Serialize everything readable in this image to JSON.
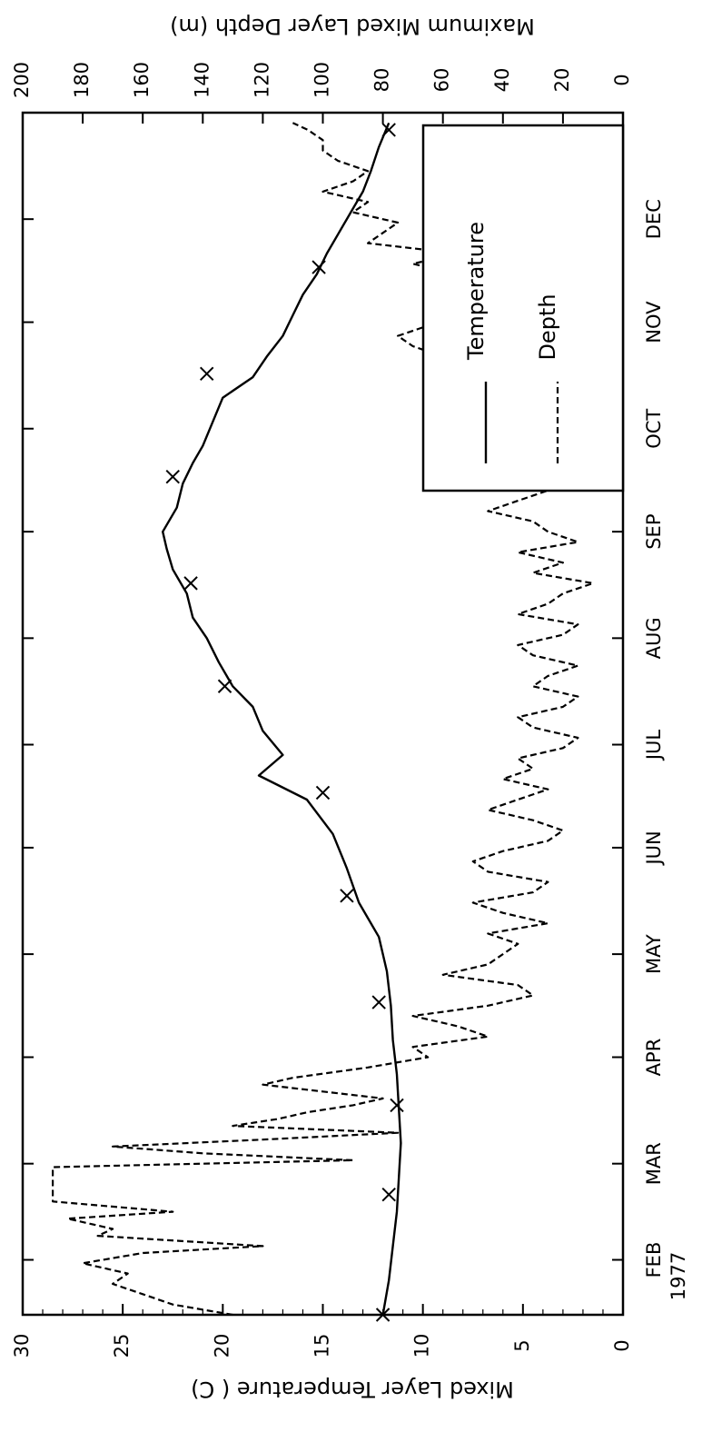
{
  "chart_data": {
    "type": "line",
    "orientation": "rotated-90-clockwise",
    "ylabel": "Mixed Layer Temperature ( C)",
    "y2label": "Maximum Mixed Layer Depth (m)",
    "ylim": [
      0,
      30
    ],
    "y2lim": [
      0,
      200
    ],
    "y2_inverted": true,
    "x_tick_labels": [
      "FEB",
      "MAR",
      "APR",
      "MAY",
      "JUN",
      "JUL",
      "AUG",
      "SEP",
      "OCT",
      "NOV",
      "DEC"
    ],
    "x_tick_day": [
      31,
      59,
      90,
      120,
      151,
      181,
      212,
      243,
      273,
      304,
      334
    ],
    "x_sub_label": "1977",
    "xlim": [
      15,
      365
    ],
    "y_ticks": [
      0,
      5,
      10,
      15,
      20,
      25,
      30
    ],
    "y2_ticks": [
      0,
      20,
      40,
      60,
      80,
      100,
      120,
      140,
      160,
      180,
      200
    ],
    "legend": {
      "placement": "lower-right (bottom-left when rotated)",
      "entries": [
        "Temperature",
        "Depth"
      ]
    },
    "series": [
      {
        "name": "Temperature",
        "style": "solid",
        "axis": "left",
        "x": [
          15,
          25,
          35,
          45,
          55,
          65,
          75,
          85,
          95,
          105,
          115,
          125,
          135,
          145,
          155,
          165,
          172,
          178,
          185,
          192,
          198,
          205,
          212,
          218,
          225,
          232,
          238,
          243,
          250,
          257,
          263,
          268,
          275,
          282,
          288,
          294,
          300,
          306,
          312,
          318,
          324,
          330,
          336,
          342,
          348,
          355,
          362
        ],
        "y": [
          12.0,
          11.7,
          11.5,
          11.3,
          11.2,
          11.1,
          11.2,
          11.3,
          11.5,
          11.6,
          11.8,
          12.2,
          13.2,
          13.8,
          14.5,
          15.8,
          18.2,
          17.0,
          18.0,
          18.5,
          19.5,
          20.2,
          20.8,
          21.5,
          21.8,
          22.5,
          22.8,
          23.0,
          22.3,
          22.0,
          21.5,
          21.0,
          20.5,
          20.0,
          18.5,
          17.8,
          17.0,
          16.5,
          16.0,
          15.3,
          14.8,
          14.2,
          13.6,
          13.0,
          12.6,
          12.2,
          11.7
        ]
      },
      {
        "name": "Depth",
        "style": "dashed",
        "axis": "right",
        "x": [
          15,
          18,
          21,
          24,
          27,
          30,
          33,
          35,
          38,
          40,
          43,
          45,
          48,
          50,
          53,
          56,
          58,
          60,
          62,
          64,
          66,
          68,
          70,
          72,
          74,
          76,
          78,
          80,
          82,
          84,
          87,
          90,
          93,
          96,
          99,
          102,
          105,
          108,
          111,
          114,
          117,
          120,
          123,
          126,
          129,
          132,
          135,
          138,
          141,
          144,
          147,
          150,
          153,
          156,
          159,
          162,
          165,
          168,
          171,
          174,
          177,
          180,
          183,
          186,
          189,
          192,
          195,
          198,
          201,
          204,
          207,
          210,
          213,
          216,
          219,
          222,
          225,
          228,
          231,
          234,
          237,
          240,
          243,
          246,
          249,
          252,
          255,
          258,
          261,
          264,
          267,
          270,
          273,
          276,
          279,
          282,
          285,
          288,
          291,
          294,
          297,
          300,
          303,
          306,
          309,
          312,
          315,
          318,
          321,
          324,
          327,
          330,
          333,
          336,
          339,
          342,
          345,
          348,
          351,
          354,
          357,
          360,
          362
        ],
        "y": [
          130,
          150,
          160,
          170,
          165,
          180,
          160,
          120,
          175,
          170,
          185,
          150,
          190,
          190,
          190,
          190,
          190,
          90,
          140,
          170,
          120,
          75,
          130,
          115,
          105,
          90,
          80,
          100,
          120,
          110,
          85,
          65,
          70,
          45,
          55,
          70,
          45,
          30,
          35,
          60,
          45,
          40,
          35,
          45,
          25,
          40,
          50,
          30,
          25,
          45,
          50,
          40,
          25,
          20,
          30,
          45,
          35,
          25,
          40,
          30,
          35,
          20,
          15,
          30,
          35,
          20,
          15,
          30,
          25,
          15,
          30,
          35,
          20,
          15,
          35,
          25,
          20,
          10,
          30,
          20,
          35,
          15,
          25,
          30,
          45,
          35,
          25,
          40,
          30,
          45,
          35,
          50,
          40,
          30,
          25,
          35,
          45,
          50,
          55,
          60,
          70,
          75,
          65,
          50,
          60,
          45,
          60,
          55,
          70,
          55,
          85,
          80,
          75,
          90,
          85,
          100,
          90,
          85,
          95,
          100,
          100,
          105,
          110
        ]
      }
    ],
    "markers": {
      "name": "x-markers",
      "x": [
        15,
        50,
        76,
        106,
        137,
        167,
        198,
        228,
        259,
        289,
        320,
        360
      ],
      "y": [
        12.0,
        11.7,
        11.3,
        12.2,
        13.8,
        15.0,
        19.9,
        21.6,
        22.5,
        20.8,
        15.2,
        11.7
      ]
    }
  }
}
